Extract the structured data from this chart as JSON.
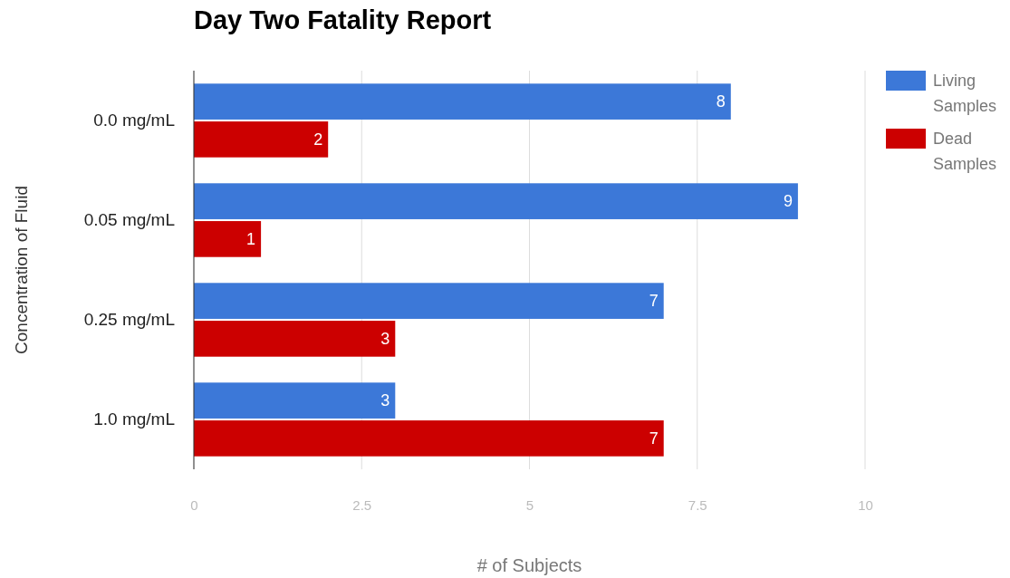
{
  "chart_data": {
    "type": "bar",
    "orientation": "horizontal",
    "title": "Day Two Fatality Report",
    "xlabel": "# of Subjects",
    "ylabel": "Concentration of Fluid",
    "categories": [
      "0.0 mg/mL",
      "0.05 mg/mL",
      "0.25 mg/mL",
      "1.0 mg/mL"
    ],
    "series": [
      {
        "name": "Living Samples",
        "color": "#3c78d8",
        "values": [
          8,
          9,
          7,
          3
        ]
      },
      {
        "name": "Dead Samples",
        "color": "#cc0000",
        "values": [
          2,
          1,
          3,
          7
        ]
      }
    ],
    "xlim": [
      0,
      10
    ],
    "xticks": [
      0,
      2.5,
      5,
      7.5,
      10
    ],
    "grid": "x",
    "legend": "top right",
    "data_labels": true
  }
}
